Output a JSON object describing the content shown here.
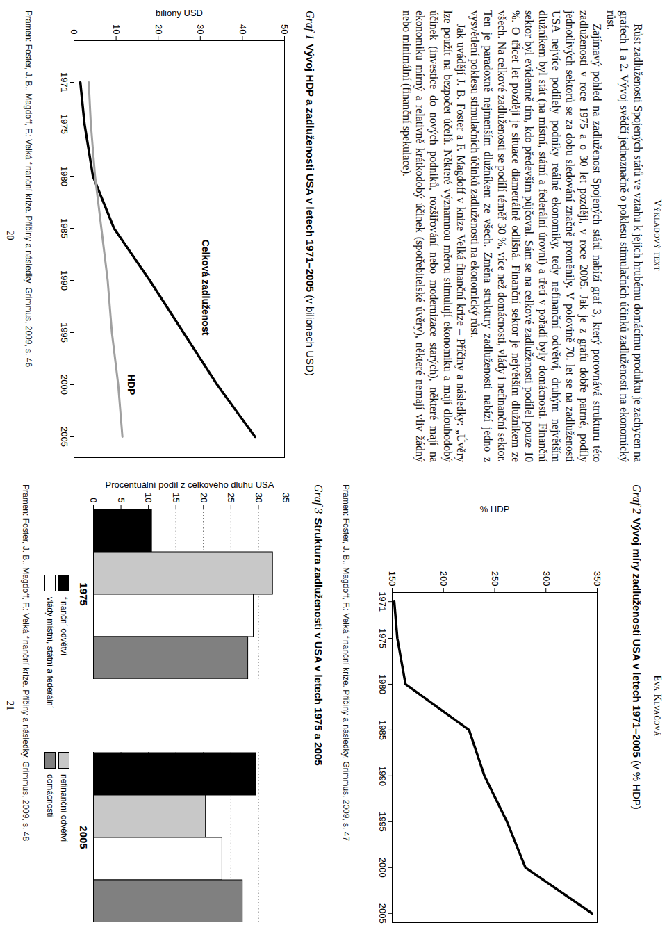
{
  "pages": [
    {
      "header": "Výkladový text",
      "number": "20",
      "paragraphs": [
        "Růst zadluženosti Spojených států ve vztahu k jejich hrubému domácímu produktu je zachycen na grafech 1 a 2. Vývoj svědčí jednoznačně o poklesu stimulačních účinků zadluženosti na ekonomický růst.",
        "Zajímavý pohled na zadluženost Spojených států nabízí graf 3, který porovnává strukturu této zadluženosti v roce 1975 a o 30 let později, v roce 2005. Jak je z grafu dobře patrné, podíly jednotlivých sektorů se za dobu sledování značně proměnily. V polovině 70. let se na zadluženosti USA nejvíce podílely podniky reálné ekonomiky, tedy nefinanční odvětví, druhým největším dlužníkem byl stát (na místní, státní a federální úrovni) a třetí v pořadí byly domácnosti. Finanční sektor byl evidentně tím, kdo především půjčoval. Sám se na celkové zadluženosti podílel pouze 10 %. O třicet let později je situace diametrálně odlišná. Finanční sektor je největším dlužníkem ze všech. Na celkové zadluženosti se podílí téměř 30 %, více než domácnosti, vlády i nefinanční sektor. Ten je paradoxně nejmenším dlužníkem ze všech. Změna struktury zadluženosti nabízí jedno z vysvětlení poklesu stimulačních účinků zadluženosti na ekonomický růst.",
        "Jak uvádějí J. B. Foster a F. Magdoff v knize Velká finanční krize – Příčiny a následky: „Úvěry lze použít na bezpočet účelů. Některé významnou měrou stimulují ekonomiku a mají dlouhodobý účinek (investice do nových podniků, rozšiřování nebo modernizace starých), některé mají na ekonomiku mírný a relativně krátkodobý účinek (spotřebitelské úvěry), některé nemají vliv žádný nebo minimální (finanční spekulace)."
      ]
    },
    {
      "header": "Eva Klvačová",
      "number": "21",
      "paragraphs": []
    }
  ],
  "chart_data": [
    {
      "type": "line",
      "figure_label": "Graf 1",
      "title": "Vývoj HDP a zadluženosti USA v letech 1971–2005",
      "subtitle": "(v bilionech USD)",
      "source": "Pramen: Foster, J. B., Magdoff, F.: Velká finanční krize. Příčiny a následky. Grimmus, 2009, s. 46",
      "y_label": "biliony USD",
      "x": [
        1971,
        1975,
        1980,
        1985,
        1990,
        1995,
        2000,
        2005
      ],
      "series": [
        {
          "name": "Celková zadluženost",
          "color": "#000000",
          "values": [
            1.5,
            2.5,
            4.5,
            9.5,
            18,
            26,
            34,
            43
          ]
        },
        {
          "name": "HDP",
          "color": "#a0a0a0",
          "values": [
            3.5,
            4,
            5,
            6.5,
            8,
            9,
            10.5,
            11.5
          ]
        }
      ],
      "xlim": [
        1967,
        2007
      ],
      "xticks": [
        1971,
        1975,
        1980,
        1985,
        1990,
        1995,
        2000,
        2005
      ],
      "ylim": [
        0,
        50
      ],
      "yticks": [
        0,
        10,
        20,
        30,
        40,
        50
      ],
      "grid": false
    },
    {
      "type": "line",
      "figure_label": "Graf 2",
      "title": "Vývoj míry zadluženosti USA v letech 1971–2005",
      "subtitle": "(v % HDP)",
      "source": "Pramen: Foster, J. B., Magdoff, F.: Velká finanční krize. Příčiny a následky. Grimmus, 2009, s. 47",
      "y_label": "% HDP",
      "x": [
        1971,
        1975,
        1980,
        1985,
        1990,
        1995,
        2000,
        2005
      ],
      "values": [
        152,
        155,
        163,
        225,
        240,
        262,
        280,
        345
      ],
      "color": "#000000",
      "xlim": [
        1970,
        2006
      ],
      "xticks": [
        1971,
        1975,
        1980,
        1985,
        1990,
        1995,
        2000,
        2005
      ],
      "ylim": [
        150,
        350
      ],
      "yticks": [
        150,
        200,
        250,
        300,
        350
      ],
      "grid": false
    },
    {
      "type": "bar",
      "figure_label": "Graf 3",
      "title": "Struktura zadluženosti v USA v letech 1975 a 2005",
      "source": "Pramen: Foster, J. B., Magdoff, F.: Velká finanční krize. Příčiny a následky. Grimmus, 2009, s. 48",
      "y_label": "Procentuální podíl z celkového dluhu USA",
      "categories": [
        "1975",
        "2005"
      ],
      "series": [
        {
          "name": "finanční odvětví",
          "color": "#000000",
          "values": [
            10.5,
            29.5
          ]
        },
        {
          "name": "nefinanční odvětví",
          "color": "#c8c8c8",
          "values": [
            32.5,
            20.3
          ]
        },
        {
          "name": "vlády místní, státní a federální",
          "color": "#ffffff",
          "values": [
            29,
            23.3
          ]
        },
        {
          "name": "domácnosti",
          "color": "#808080",
          "values": [
            28,
            27
          ]
        }
      ],
      "ylim": [
        0,
        35
      ],
      "yticks": [
        0,
        5,
        10,
        15,
        20,
        25,
        30,
        35
      ],
      "grid": true,
      "legend": "bottom"
    }
  ]
}
